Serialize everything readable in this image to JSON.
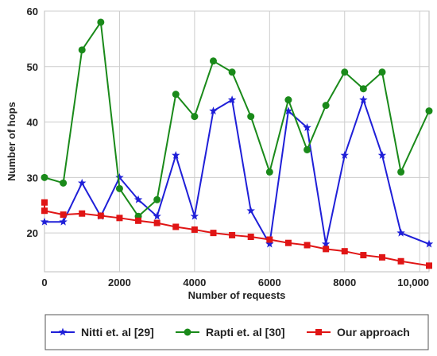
{
  "chart_data": {
    "type": "line",
    "title": "",
    "xlabel": "Number of requests",
    "ylabel": "Number of hops",
    "xlim": [
      0,
      10250
    ],
    "ylim": [
      13,
      60
    ],
    "x_ticks": [
      0,
      2000,
      4000,
      6000,
      8000,
      10000
    ],
    "x_tick_labels": [
      "0",
      "2000",
      "4000",
      "6000",
      "8000",
      "10,000"
    ],
    "y_ticks": [
      20,
      30,
      40,
      50,
      60
    ],
    "y_tick_labels": [
      "20",
      "30",
      "40",
      "50",
      "60"
    ],
    "grid": true,
    "legend_position": "bottom",
    "series": [
      {
        "name": "Nitti et. al [29]",
        "color": "#1f1fd8",
        "marker": "star",
        "x": [
          0,
          500,
          1000,
          1500,
          2000,
          2500,
          3000,
          3500,
          4000,
          4500,
          5000,
          5500,
          6000,
          6500,
          7000,
          7500,
          8000,
          8500,
          9000,
          9500,
          10250
        ],
        "y": [
          22,
          22,
          29,
          23,
          30,
          26,
          23,
          34,
          23,
          42,
          44,
          24,
          18,
          42,
          39,
          18,
          34,
          44,
          34,
          20,
          18
        ]
      },
      {
        "name": "Rapti et. al [30]",
        "color": "#1a8a1a",
        "marker": "circle",
        "x": [
          0,
          500,
          1000,
          1500,
          2000,
          2500,
          3000,
          3500,
          4000,
          4500,
          5000,
          5500,
          6000,
          6500,
          7000,
          7500,
          8000,
          8500,
          9000,
          9500,
          10250
        ],
        "y": [
          30,
          29,
          53,
          58,
          28,
          23,
          26,
          45,
          41,
          51,
          49,
          41,
          31,
          44,
          35,
          43,
          49,
          46,
          49,
          31,
          42
        ]
      },
      {
        "name": "Our approach",
        "color": "#e01515",
        "marker": "square",
        "x": [
          0,
          0,
          500,
          1000,
          1500,
          2000,
          2500,
          3000,
          3500,
          4000,
          4500,
          5000,
          5500,
          6000,
          6500,
          7000,
          7500,
          8000,
          8500,
          9000,
          9500,
          10250
        ],
        "y": [
          25.5,
          24,
          23.3,
          23.5,
          23.1,
          22.7,
          22.2,
          21.8,
          21.1,
          20.6,
          20.0,
          19.6,
          19.3,
          18.8,
          18.2,
          17.8,
          17.1,
          16.7,
          16.0,
          15.6,
          14.9,
          14.1
        ]
      }
    ]
  }
}
